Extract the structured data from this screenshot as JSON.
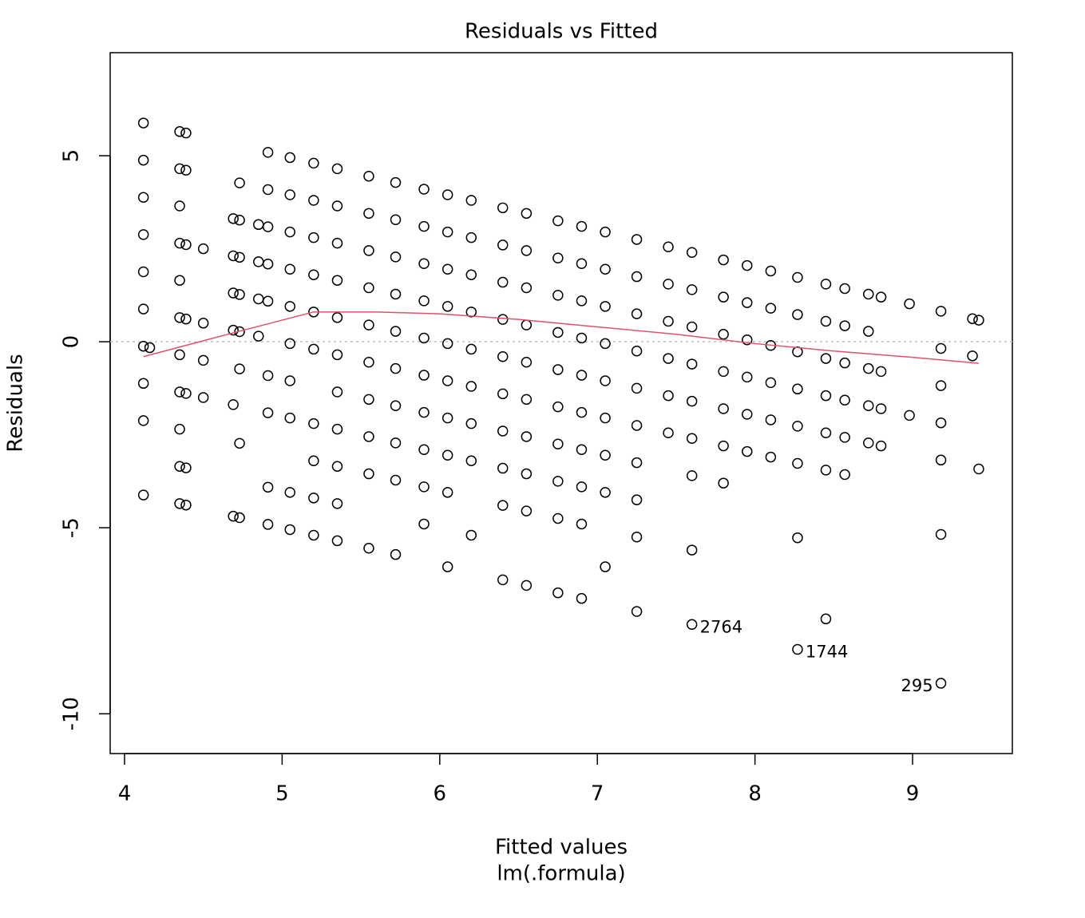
{
  "chart_data": {
    "type": "scatter",
    "title": "Residuals vs Fitted",
    "x_label": "Fitted values",
    "x_sublabel": "lm(.formula)",
    "y_label": "Residuals",
    "xlim": [
      3.909,
      9.633
    ],
    "ylim": [
      -11.07,
      7.77
    ],
    "xticks": [
      4,
      5,
      6,
      7,
      8,
      9
    ],
    "yticks": [
      -10,
      -5,
      0,
      5
    ],
    "point_color": "#000000",
    "smooth_color": "#df536b",
    "reference_line": 0,
    "reference_color": "#bebebe",
    "x": [
      4.12,
      4.12,
      4.12,
      4.12,
      4.12,
      4.12,
      4.12,
      4.12,
      4.12,
      4.12,
      4.16,
      4.35,
      4.35,
      4.35,
      4.35,
      4.35,
      4.35,
      4.35,
      4.35,
      4.35,
      4.35,
      4.35,
      4.39,
      4.39,
      4.39,
      4.39,
      4.39,
      4.39,
      4.39,
      4.5,
      4.5,
      4.5,
      4.5,
      4.69,
      4.69,
      4.69,
      4.69,
      4.69,
      4.69,
      4.73,
      4.73,
      4.73,
      4.73,
      4.73,
      4.73,
      4.73,
      4.73,
      4.85,
      4.85,
      4.85,
      4.85,
      4.91,
      4.91,
      4.91,
      4.91,
      4.91,
      4.91,
      4.91,
      4.91,
      4.91,
      5.05,
      5.05,
      5.05,
      5.05,
      5.05,
      5.05,
      5.05,
      5.05,
      5.05,
      5.05,
      5.2,
      5.2,
      5.2,
      5.2,
      5.2,
      5.2,
      5.2,
      5.2,
      5.2,
      5.2,
      5.35,
      5.35,
      5.35,
      5.35,
      5.35,
      5.35,
      5.35,
      5.35,
      5.35,
      5.35,
      5.35,
      5.55,
      5.55,
      5.55,
      5.55,
      5.55,
      5.55,
      5.55,
      5.55,
      5.55,
      5.55,
      5.72,
      5.72,
      5.72,
      5.72,
      5.72,
      5.72,
      5.72,
      5.72,
      5.72,
      5.72,
      5.9,
      5.9,
      5.9,
      5.9,
      5.9,
      5.9,
      5.9,
      5.9,
      5.9,
      5.9,
      6.05,
      6.05,
      6.05,
      6.05,
      6.05,
      6.05,
      6.05,
      6.05,
      6.05,
      6.05,
      6.2,
      6.2,
      6.2,
      6.2,
      6.2,
      6.2,
      6.2,
      6.2,
      6.2,
      6.4,
      6.4,
      6.4,
      6.4,
      6.4,
      6.4,
      6.4,
      6.4,
      6.4,
      6.4,
      6.55,
      6.55,
      6.55,
      6.55,
      6.55,
      6.55,
      6.55,
      6.55,
      6.55,
      6.55,
      6.75,
      6.75,
      6.75,
      6.75,
      6.75,
      6.75,
      6.75,
      6.75,
      6.75,
      6.75,
      6.9,
      6.9,
      6.9,
      6.9,
      6.9,
      6.9,
      6.9,
      6.9,
      6.9,
      6.9,
      7.05,
      7.05,
      7.05,
      7.05,
      7.05,
      7.05,
      7.05,
      7.05,
      7.05,
      7.25,
      7.25,
      7.25,
      7.25,
      7.25,
      7.25,
      7.25,
      7.25,
      7.25,
      7.25,
      7.45,
      7.45,
      7.45,
      7.45,
      7.45,
      7.45,
      7.6,
      7.6,
      7.6,
      7.6,
      7.6,
      7.6,
      7.6,
      7.6,
      7.6,
      7.8,
      7.8,
      7.8,
      7.8,
      7.8,
      7.8,
      7.8,
      7.95,
      7.95,
      7.95,
      7.95,
      7.95,
      7.95,
      8.1,
      8.1,
      8.1,
      8.1,
      8.1,
      8.1,
      8.27,
      8.27,
      8.27,
      8.27,
      8.27,
      8.27,
      8.27,
      8.27,
      8.45,
      8.45,
      8.45,
      8.45,
      8.45,
      8.45,
      8.45,
      8.57,
      8.57,
      8.57,
      8.57,
      8.57,
      8.57,
      8.72,
      8.72,
      8.72,
      8.72,
      8.72,
      8.8,
      8.8,
      8.8,
      8.8,
      8.98,
      8.98,
      9.18,
      9.18,
      9.18,
      9.18,
      9.18,
      9.18,
      9.18,
      9.38,
      9.38,
      9.42,
      9.42
    ],
    "values": [
      -4.12,
      -2.12,
      -1.12,
      -0.12,
      0.88,
      1.88,
      2.88,
      3.88,
      4.88,
      5.88,
      -0.16,
      -4.35,
      -3.35,
      -2.35,
      -1.35,
      -0.35,
      0.65,
      1.65,
      2.65,
      3.65,
      4.65,
      5.65,
      -4.39,
      -3.39,
      -1.39,
      0.61,
      2.61,
      4.61,
      5.61,
      -1.5,
      -0.5,
      0.5,
      2.5,
      -4.69,
      -1.69,
      0.31,
      1.31,
      2.31,
      3.31,
      -4.73,
      -2.73,
      -0.73,
      0.27,
      1.27,
      2.27,
      3.27,
      4.27,
      0.15,
      1.15,
      2.15,
      3.15,
      -4.91,
      -3.91,
      -1.91,
      -0.91,
      1.09,
      2.09,
      3.09,
      4.09,
      5.09,
      -5.05,
      -4.05,
      -2.05,
      -1.05,
      -0.05,
      0.95,
      1.95,
      2.95,
      3.95,
      4.95,
      -5.2,
      -4.2,
      -3.2,
      -2.2,
      -0.2,
      0.8,
      1.8,
      2.8,
      3.8,
      4.8,
      -5.35,
      -4.35,
      -3.35,
      -2.35,
      -1.35,
      -0.35,
      0.65,
      1.65,
      2.65,
      3.65,
      4.65,
      -5.55,
      -3.55,
      -2.55,
      -1.55,
      -0.55,
      0.45,
      1.45,
      2.45,
      3.45,
      4.45,
      -5.72,
      -3.72,
      -2.72,
      -1.72,
      -0.72,
      0.28,
      1.28,
      2.28,
      3.28,
      4.28,
      -4.9,
      -3.9,
      -2.9,
      -1.9,
      -0.9,
      0.1,
      1.1,
      2.1,
      3.1,
      4.1,
      -6.05,
      -4.05,
      -3.05,
      -2.05,
      -1.05,
      -0.05,
      0.95,
      1.95,
      2.95,
      3.95,
      -5.2,
      -3.2,
      -2.2,
      -1.2,
      -0.2,
      0.8,
      1.8,
      2.8,
      3.8,
      -6.4,
      -4.4,
      -3.4,
      -2.4,
      -1.4,
      -0.4,
      0.6,
      1.6,
      2.6,
      3.6,
      -6.55,
      -4.55,
      -3.55,
      -2.55,
      -1.55,
      -0.55,
      0.45,
      1.45,
      2.45,
      3.45,
      -6.75,
      -4.75,
      -3.75,
      -2.75,
      -1.75,
      -0.75,
      0.25,
      1.25,
      2.25,
      3.25,
      -6.9,
      -4.9,
      -3.9,
      -2.9,
      -1.9,
      -0.9,
      0.1,
      1.1,
      2.1,
      3.1,
      -6.05,
      -4.05,
      -3.05,
      -2.05,
      -1.05,
      -0.05,
      0.95,
      1.95,
      2.95,
      -7.25,
      -5.25,
      -4.25,
      -3.25,
      -2.25,
      -1.25,
      -0.25,
      0.75,
      1.75,
      2.75,
      -2.45,
      -1.45,
      -0.45,
      0.55,
      1.55,
      2.55,
      -7.6,
      -5.6,
      -3.6,
      -2.6,
      -1.6,
      -0.6,
      0.4,
      1.4,
      2.4,
      -3.8,
      -2.8,
      -1.8,
      -0.8,
      0.2,
      1.2,
      2.2,
      -2.95,
      -1.95,
      -0.95,
      0.05,
      1.05,
      2.05,
      -3.1,
      -2.1,
      -1.1,
      -0.1,
      0.9,
      1.9,
      -8.27,
      -5.27,
      -3.27,
      -2.27,
      -1.27,
      -0.27,
      0.73,
      1.73,
      -7.45,
      -3.45,
      -2.45,
      -1.45,
      -0.45,
      0.55,
      1.55,
      -3.57,
      -2.57,
      -1.57,
      -0.57,
      0.43,
      1.43,
      -2.72,
      -1.72,
      -0.72,
      0.28,
      1.28,
      -2.8,
      -1.8,
      -0.8,
      1.2,
      -1.98,
      1.02,
      -9.18,
      -5.18,
      -3.18,
      -2.18,
      -1.18,
      -0.18,
      0.82,
      -0.38,
      0.62,
      -3.42,
      0.58
    ],
    "smooth": {
      "x": [
        4.12,
        4.7,
        5.2,
        5.6,
        6.0,
        6.5,
        7.0,
        7.5,
        8.0,
        8.5,
        9.0,
        9.42
      ],
      "values": [
        -0.4,
        0.25,
        0.8,
        0.8,
        0.75,
        0.6,
        0.4,
        0.2,
        -0.05,
        -0.25,
        -0.42,
        -0.58
      ]
    },
    "annotations": [
      {
        "label": "2764",
        "x": 7.6,
        "y": -7.6,
        "side": "right"
      },
      {
        "label": "1744",
        "x": 8.27,
        "y": -8.27,
        "side": "right"
      },
      {
        "label": "295",
        "x": 9.18,
        "y": -9.18,
        "side": "left"
      }
    ]
  }
}
